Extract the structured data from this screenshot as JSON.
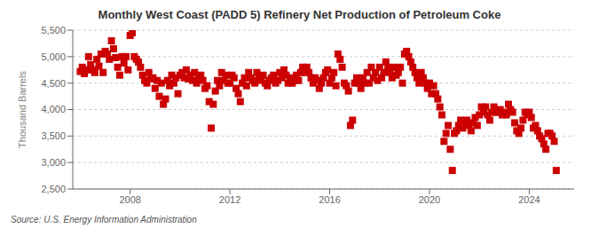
{
  "chart_data": {
    "type": "scatter",
    "title": "Monthly West Coast (PADD 5) Refinery Net Production of Petroleum Coke",
    "y_label": "Thousand Barrels",
    "annotations": [
      "Source: U.S. Energy Information Administration"
    ],
    "color": "#cc0000",
    "marker": "square",
    "grid": true,
    "xlim": [
      2005.7,
      2025.8
    ],
    "xticks": [
      2008,
      2012,
      2016,
      2020,
      2024
    ],
    "ylim": [
      2500,
      5500
    ],
    "yticks": [
      {
        "value": 2500,
        "label": "2,500"
      },
      {
        "value": 3000,
        "label": "3,000"
      },
      {
        "value": 3500,
        "label": "3,500"
      },
      {
        "value": 4000,
        "label": "4,000"
      },
      {
        "value": 4500,
        "label": "4,500"
      },
      {
        "value": 5000,
        "label": "5,000"
      },
      {
        "value": 5500,
        "label": "5,500"
      }
    ],
    "x": [
      2006.0,
      2006.083,
      2006.167,
      2006.25,
      2006.333,
      2006.417,
      2006.5,
      2006.583,
      2006.667,
      2006.75,
      2006.833,
      2006.917,
      2007.0,
      2007.083,
      2007.167,
      2007.25,
      2007.333,
      2007.417,
      2007.5,
      2007.583,
      2007.667,
      2007.75,
      2007.833,
      2007.917,
      2008.0,
      2008.083,
      2008.167,
      2008.25,
      2008.333,
      2008.417,
      2008.5,
      2008.583,
      2008.667,
      2008.75,
      2008.833,
      2008.917,
      2009.0,
      2009.083,
      2009.167,
      2009.25,
      2009.333,
      2009.417,
      2009.5,
      2009.583,
      2009.667,
      2009.75,
      2009.833,
      2009.917,
      2010.0,
      2010.083,
      2010.167,
      2010.25,
      2010.333,
      2010.417,
      2010.5,
      2010.583,
      2010.667,
      2010.75,
      2010.833,
      2010.917,
      2011.0,
      2011.083,
      2011.167,
      2011.25,
      2011.333,
      2011.417,
      2011.5,
      2011.583,
      2011.667,
      2011.75,
      2011.833,
      2011.917,
      2012.0,
      2012.083,
      2012.167,
      2012.25,
      2012.333,
      2012.417,
      2012.5,
      2012.583,
      2012.667,
      2012.75,
      2012.833,
      2012.917,
      2013.0,
      2013.083,
      2013.167,
      2013.25,
      2013.333,
      2013.417,
      2013.5,
      2013.583,
      2013.667,
      2013.75,
      2013.833,
      2013.917,
      2014.0,
      2014.083,
      2014.167,
      2014.25,
      2014.333,
      2014.417,
      2014.5,
      2014.583,
      2014.667,
      2014.75,
      2014.833,
      2014.917,
      2015.0,
      2015.083,
      2015.167,
      2015.25,
      2015.333,
      2015.417,
      2015.5,
      2015.583,
      2015.667,
      2015.75,
      2015.833,
      2015.917,
      2016.0,
      2016.083,
      2016.167,
      2016.25,
      2016.333,
      2016.417,
      2016.5,
      2016.583,
      2016.667,
      2016.75,
      2016.833,
      2016.917,
      2017.0,
      2017.083,
      2017.167,
      2017.25,
      2017.333,
      2017.417,
      2017.5,
      2017.583,
      2017.667,
      2017.75,
      2017.833,
      2017.917,
      2018.0,
      2018.083,
      2018.167,
      2018.25,
      2018.333,
      2018.417,
      2018.5,
      2018.583,
      2018.667,
      2018.75,
      2018.833,
      2018.917,
      2019.0,
      2019.083,
      2019.167,
      2019.25,
      2019.333,
      2019.417,
      2019.5,
      2019.583,
      2019.667,
      2019.75,
      2019.833,
      2019.917,
      2020.0,
      2020.083,
      2020.167,
      2020.25,
      2020.333,
      2020.417,
      2020.5,
      2020.583,
      2020.667,
      2020.75,
      2020.833,
      2020.917,
      2021.0,
      2021.083,
      2021.167,
      2021.25,
      2021.333,
      2021.417,
      2021.5,
      2021.583,
      2021.667,
      2021.75,
      2021.833,
      2021.917,
      2022.0,
      2022.083,
      2022.167,
      2022.25,
      2022.333,
      2022.417,
      2022.5,
      2022.583,
      2022.667,
      2022.75,
      2022.833,
      2022.917,
      2023.0,
      2023.083,
      2023.167,
      2023.25,
      2023.333,
      2023.417,
      2023.5,
      2023.583,
      2023.667,
      2023.75,
      2023.833,
      2023.917,
      2024.0,
      2024.083,
      2024.167,
      2024.25,
      2024.333,
      2024.417,
      2024.5,
      2024.583,
      2024.667,
      2024.75,
      2024.833,
      2024.917,
      2025.0,
      2025.083
    ],
    "values": [
      4720,
      4800,
      4680,
      4750,
      5000,
      4850,
      4750,
      4700,
      4950,
      4820,
      5050,
      4700,
      5100,
      5050,
      4950,
      5300,
      5150,
      4980,
      4800,
      4650,
      5000,
      4880,
      5000,
      4750,
      5400,
      5450,
      5000,
      4950,
      4900,
      4800,
      4650,
      4550,
      4500,
      4700,
      4580,
      4600,
      4400,
      4550,
      4250,
      4500,
      4100,
      4200,
      4550,
      4450,
      4650,
      4500,
      4600,
      4300,
      4650,
      4700,
      4600,
      4750,
      4580,
      4650,
      4550,
      4700,
      4500,
      4600,
      4650,
      4550,
      4400,
      4450,
      4150,
      3650,
      4100,
      4350,
      4550,
      4450,
      4700,
      4550,
      4650,
      4500,
      4500,
      4650,
      4600,
      4400,
      4300,
      4150,
      4500,
      4600,
      4450,
      4700,
      4600,
      4550,
      4500,
      4700,
      4600,
      4550,
      4650,
      4500,
      4450,
      4550,
      4600,
      4650,
      4500,
      4550,
      4700,
      4600,
      4750,
      4650,
      4500,
      4600,
      4500,
      4550,
      4650,
      4550,
      4700,
      4800,
      4700,
      4800,
      4700,
      4600,
      4500,
      4600,
      4550,
      4400,
      4500,
      4600,
      4700,
      4750,
      4500,
      4600,
      4700,
      4450,
      5050,
      4950,
      4800,
      4500,
      4450,
      4350,
      3700,
      3800,
      4500,
      4600,
      4500,
      4400,
      4600,
      4500,
      4700,
      4500,
      4800,
      4600,
      4700,
      4550,
      4800,
      4600,
      4700,
      4900,
      4800,
      4700,
      4600,
      4800,
      4650,
      4700,
      4800,
      4500,
      5050,
      5100,
      5000,
      4900,
      4800,
      4700,
      4600,
      4500,
      4700,
      4600,
      4500,
      4400,
      4500,
      4300,
      4450,
      4300,
      4200,
      4050,
      3900,
      3400,
      3550,
      3700,
      3250,
      2850,
      3550,
      3600,
      3700,
      3800,
      3650,
      3750,
      3800,
      3700,
      3600,
      3750,
      3850,
      3700,
      3900,
      4050,
      3950,
      4050,
      3900,
      3800,
      3950,
      4050,
      3950,
      3950,
      4000,
      3900,
      3950,
      3900,
      4100,
      4000,
      3950,
      3750,
      3600,
      3550,
      3650,
      3800,
      3950,
      3900,
      3950,
      3850,
      3650,
      3700,
      3600,
      3500,
      3450,
      3350,
      3250,
      3550,
      3550,
      3500,
      3400,
      2850
    ]
  }
}
